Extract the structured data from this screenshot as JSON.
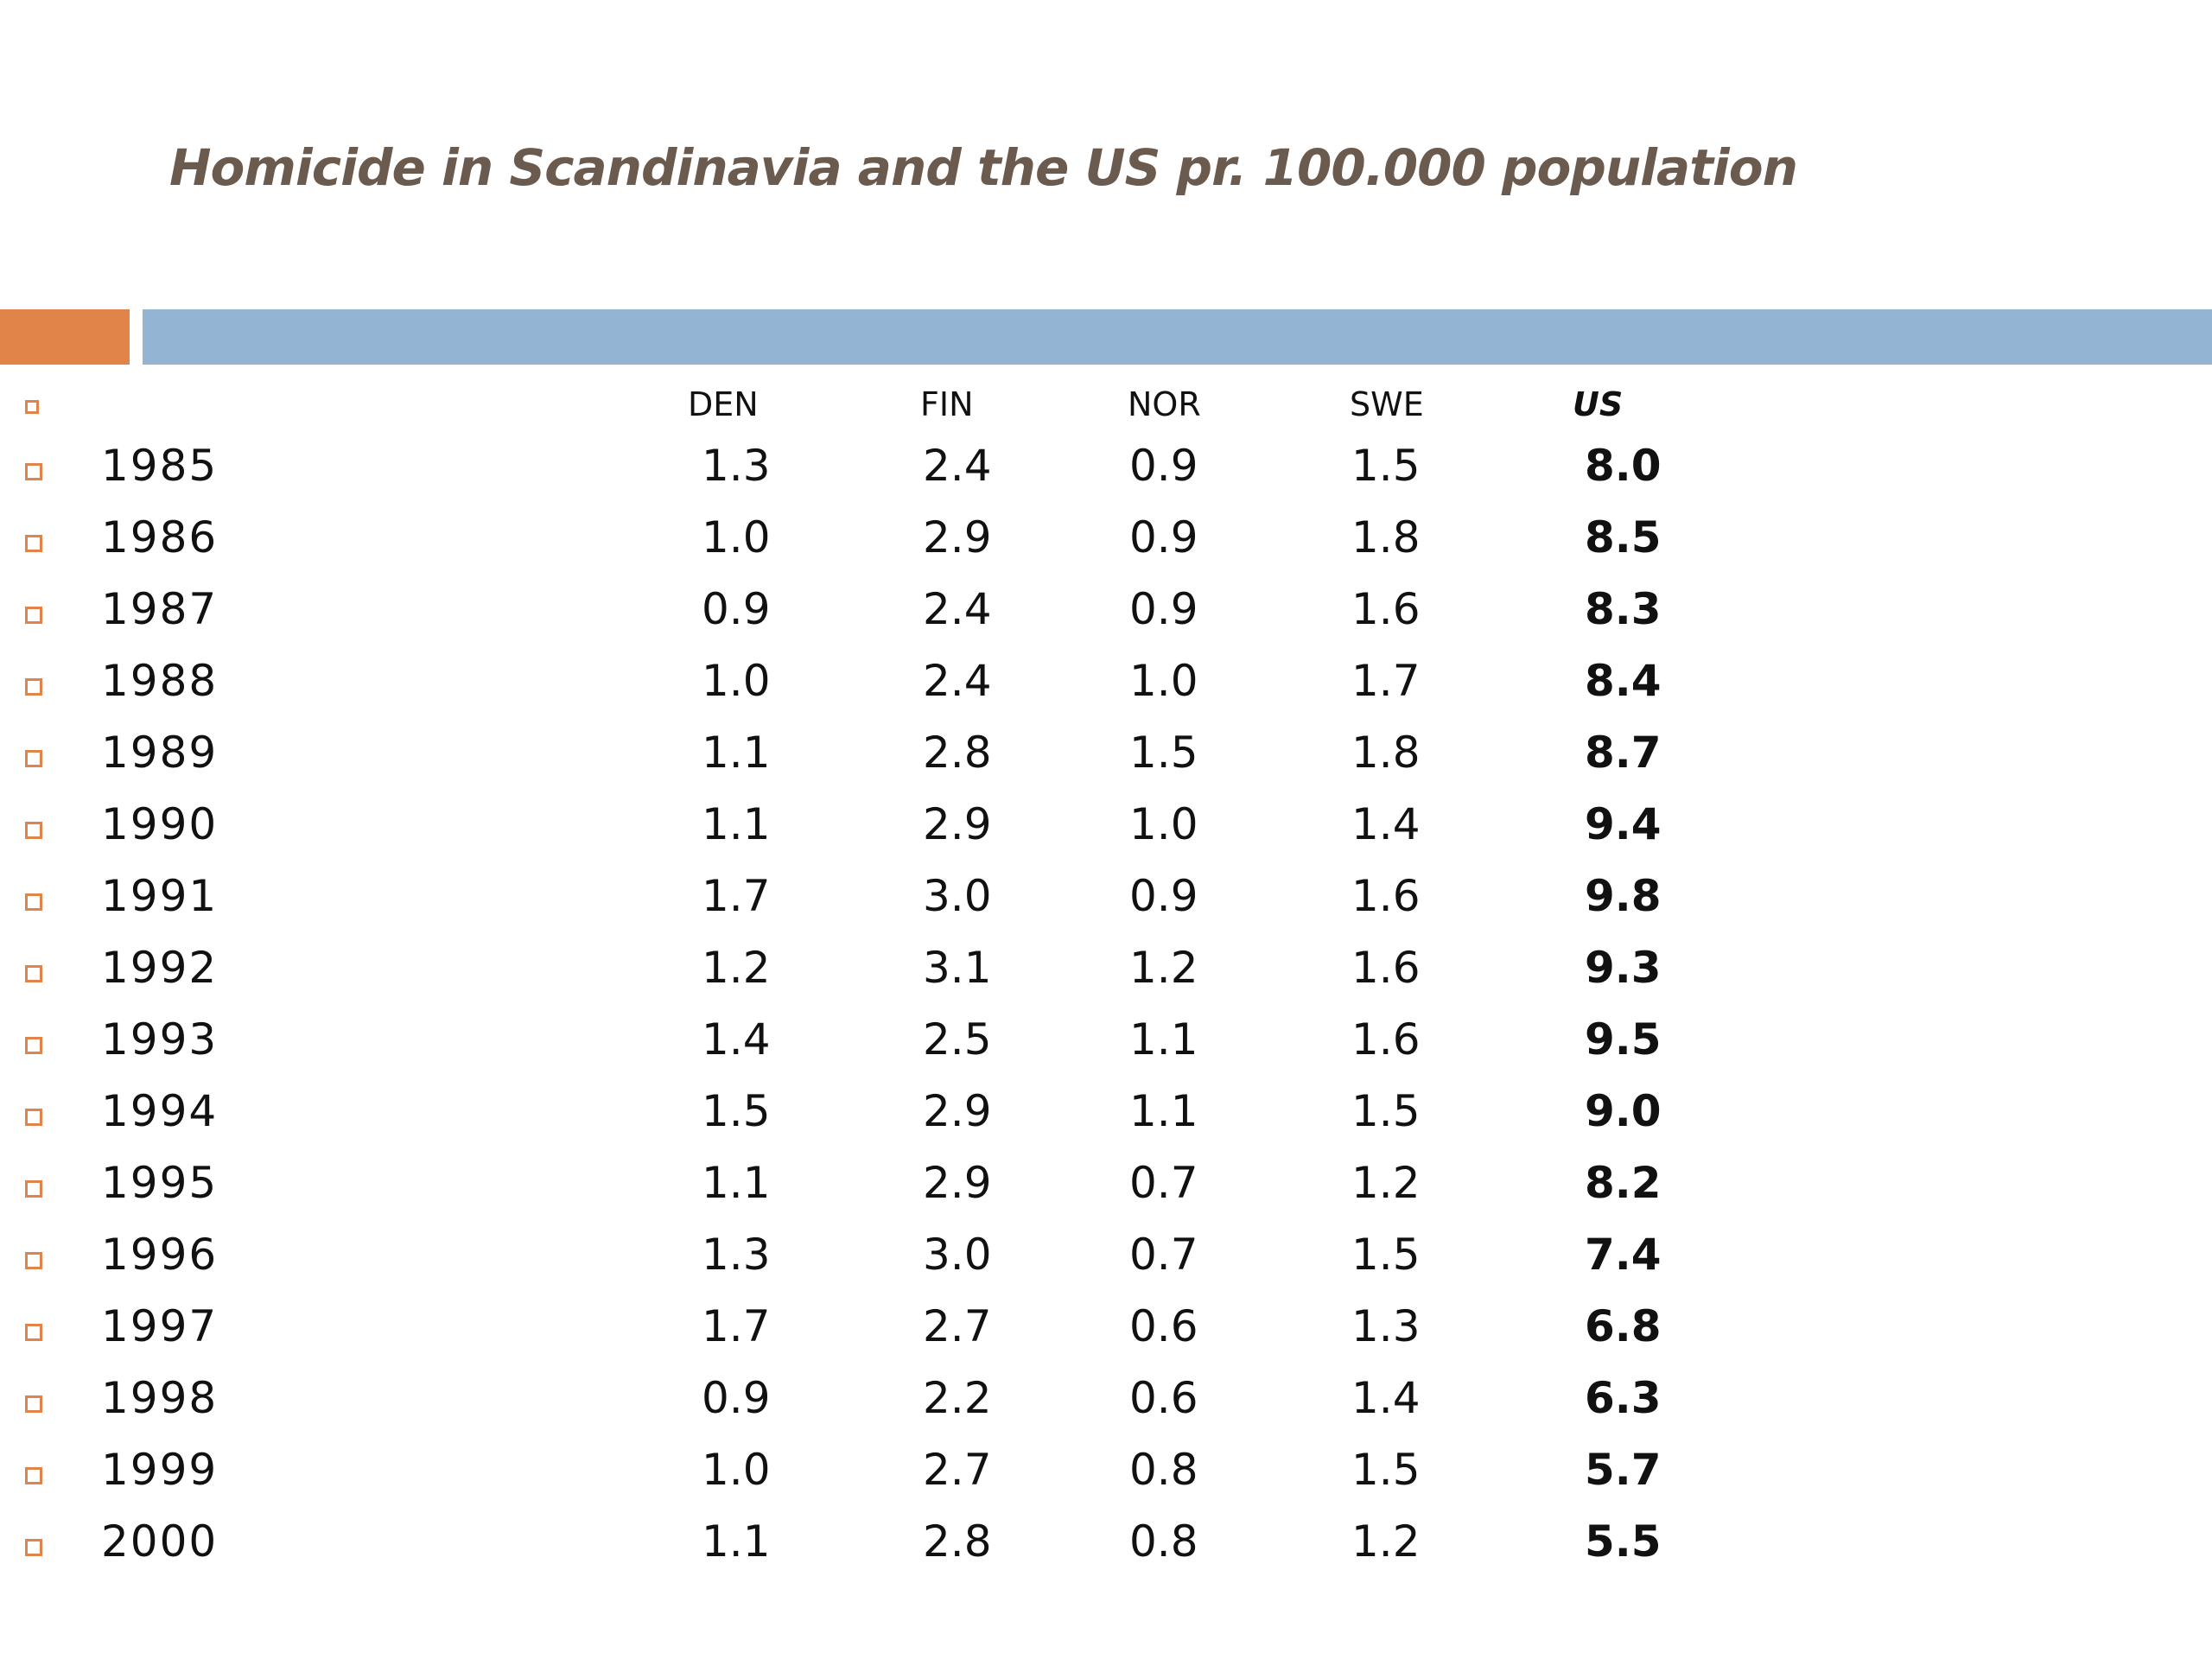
{
  "title": "Homicide in Scandinavia and the US pr. 100.000 population",
  "colors": {
    "accent_orange": "#e0844a",
    "accent_blue": "#94b4d3",
    "title": "#6b5a4e"
  },
  "table": {
    "columns": [
      "DEN",
      "FIN",
      "NOR",
      "SWE",
      "US"
    ],
    "rows": [
      {
        "year": "1985",
        "den": "1.3",
        "fin": "2.4",
        "nor": "0.9",
        "swe": "1.5",
        "us": "8.0"
      },
      {
        "year": "1986",
        "den": "1.0",
        "fin": "2.9",
        "nor": "0.9",
        "swe": "1.8",
        "us": "8.5"
      },
      {
        "year": "1987",
        "den": "0.9",
        "fin": "2.4",
        "nor": "0.9",
        "swe": "1.6",
        "us": "8.3"
      },
      {
        "year": "1988",
        "den": "1.0",
        "fin": "2.4",
        "nor": "1.0",
        "swe": "1.7",
        "us": "8.4"
      },
      {
        "year": "1989",
        "den": "1.1",
        "fin": "2.8",
        "nor": "1.5",
        "swe": "1.8",
        "us": "8.7"
      },
      {
        "year": "1990",
        "den": "1.1",
        "fin": "2.9",
        "nor": "1.0",
        "swe": "1.4",
        "us": "9.4"
      },
      {
        "year": "1991",
        "den": "1.7",
        "fin": "3.0",
        "nor": "0.9",
        "swe": "1.6",
        "us": "9.8"
      },
      {
        "year": "1992",
        "den": "1.2",
        "fin": "3.1",
        "nor": "1.2",
        "swe": "1.6",
        "us": "9.3"
      },
      {
        "year": "1993",
        "den": "1.4",
        "fin": "2.5",
        "nor": "1.1",
        "swe": "1.6",
        "us": "9.5"
      },
      {
        "year": "1994",
        "den": "1.5",
        "fin": "2.9",
        "nor": "1.1",
        "swe": "1.5",
        "us": "9.0"
      },
      {
        "year": "1995",
        "den": "1.1",
        "fin": "2.9",
        "nor": "0.7",
        "swe": "1.2",
        "us": "8.2"
      },
      {
        "year": "1996",
        "den": "1.3",
        "fin": "3.0",
        "nor": "0.7",
        "swe": "1.5",
        "us": "7.4"
      },
      {
        "year": "1997",
        "den": "1.7",
        "fin": "2.7",
        "nor": "0.6",
        "swe": "1.3",
        "us": "6.8"
      },
      {
        "year": "1998",
        "den": "0.9",
        "fin": "2.2",
        "nor": "0.6",
        "swe": "1.4",
        "us": "6.3"
      },
      {
        "year": "1999",
        "den": "1.0",
        "fin": "2.7",
        "nor": "0.8",
        "swe": "1.5",
        "us": "5.7"
      },
      {
        "year": "2000",
        "den": "1.1",
        "fin": "2.8",
        "nor": "0.8",
        "swe": "1.2",
        "us": "5.5"
      }
    ]
  }
}
